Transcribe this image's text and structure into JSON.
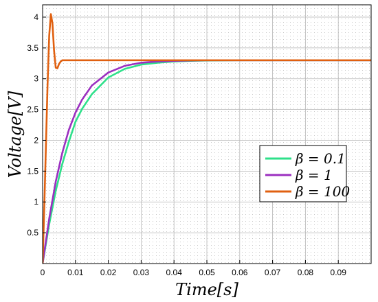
{
  "chart_data": {
    "type": "line",
    "xlabel": "Time[s]",
    "ylabel": "Voltage[V]",
    "xlim": [
      0,
      0.1
    ],
    "ylim": [
      0,
      4.2
    ],
    "x_ticks": [
      0,
      0.01,
      0.02,
      0.03,
      0.04,
      0.05,
      0.06,
      0.07,
      0.08,
      0.09
    ],
    "x_tick_labels": [
      "0",
      "0.01",
      "0.02",
      "0.03",
      "0.04",
      "0.05",
      "0.06",
      "0.07",
      "0.08",
      "0.09"
    ],
    "y_ticks": [
      0.5,
      1,
      1.5,
      2,
      2.5,
      3,
      3.5,
      4
    ],
    "y_tick_labels": [
      "0.5",
      "1",
      "1.5",
      "2",
      "2.5",
      "3",
      "3.5",
      "4"
    ],
    "grid": true,
    "legend_position": "right",
    "series": [
      {
        "name": "β = 0.1",
        "color": "#2ee08a",
        "x": [
          0,
          0.002,
          0.004,
          0.006,
          0.008,
          0.01,
          0.012,
          0.015,
          0.02,
          0.025,
          0.03,
          0.035,
          0.04,
          0.045,
          0.05,
          0.06,
          0.07,
          0.08,
          0.09,
          0.1
        ],
        "y": [
          0,
          0.64,
          1.18,
          1.62,
          1.98,
          2.3,
          2.51,
          2.75,
          3.02,
          3.16,
          3.23,
          3.26,
          3.28,
          3.29,
          3.295,
          3.3,
          3.3,
          3.3,
          3.3,
          3.3
        ]
      },
      {
        "name": "β = 1",
        "color": "#9b2fc0",
        "x": [
          0,
          0.002,
          0.004,
          0.006,
          0.008,
          0.01,
          0.012,
          0.015,
          0.02,
          0.025,
          0.03,
          0.035,
          0.04,
          0.045,
          0.05,
          0.06,
          0.07,
          0.08,
          0.09,
          0.1
        ],
        "y": [
          0,
          0.73,
          1.33,
          1.8,
          2.17,
          2.45,
          2.66,
          2.89,
          3.1,
          3.21,
          3.26,
          3.28,
          3.29,
          3.295,
          3.3,
          3.3,
          3.3,
          3.3,
          3.3,
          3.3
        ]
      },
      {
        "name": "β = 100",
        "color": "#e06010",
        "x": [
          0,
          0.0005,
          0.001,
          0.0015,
          0.002,
          0.0025,
          0.003,
          0.0035,
          0.004,
          0.0045,
          0.005,
          0.0055,
          0.006,
          0.007,
          0.008,
          0.01,
          0.02,
          0.05,
          0.1
        ],
        "y": [
          0,
          0.9,
          1.9,
          2.9,
          3.7,
          4.05,
          3.9,
          3.45,
          3.18,
          3.17,
          3.24,
          3.28,
          3.3,
          3.3,
          3.3,
          3.3,
          3.3,
          3.3,
          3.3
        ]
      }
    ]
  }
}
